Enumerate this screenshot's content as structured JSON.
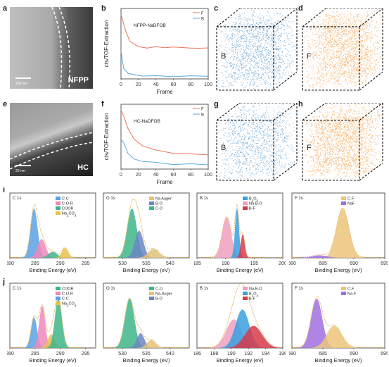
{
  "panels": {
    "a": {
      "label": "a",
      "caption": "NFPP",
      "scale": "200 nm"
    },
    "b": {
      "label": "b",
      "title": "NFPP-NaDFOB",
      "ylabel": "cts/TOF-Extraction",
      "xlabel": "Frame",
      "legend": [
        "F",
        "B"
      ],
      "xticks": [
        "0",
        "20",
        "40",
        "60",
        "80",
        "100"
      ]
    },
    "c": {
      "label": "c",
      "element": "B"
    },
    "d": {
      "label": "d",
      "element": "F"
    },
    "e": {
      "label": "e",
      "caption": "HC",
      "scale": "20 nm"
    },
    "f": {
      "label": "f",
      "title": "HC-NaDFOB",
      "ylabel": "cts/TOF-Extraction",
      "xlabel": "Frame",
      "legend": [
        "F",
        "B"
      ],
      "xticks": [
        "0",
        "20",
        "40",
        "60",
        "80",
        "100"
      ]
    },
    "g": {
      "label": "g",
      "element": "B"
    },
    "h": {
      "label": "h",
      "element": "F"
    },
    "i": {
      "label": "i"
    },
    "j": {
      "label": "j"
    }
  },
  "xps_xlabel": "Binding Energy (eV)",
  "colors": {
    "F": "#e8735a",
    "B": "#5aa9e0",
    "cubeB": "#2f7fc1",
    "cubeF": "#f08a1c"
  },
  "chart_data": [
    {
      "type": "line",
      "title": "NFPP-NaDFOB",
      "xlabel": "Frame",
      "ylabel": "cts/TOF-Extraction",
      "xlim": [
        0,
        100
      ],
      "series": [
        {
          "name": "F",
          "x": [
            0,
            5,
            10,
            20,
            30,
            40,
            50,
            60,
            70,
            80,
            90,
            100
          ],
          "values": [
            0.95,
            0.72,
            0.55,
            0.48,
            0.46,
            0.47,
            0.46,
            0.48,
            0.46,
            0.45,
            0.46,
            0.46
          ]
        },
        {
          "name": "B",
          "x": [
            0,
            3,
            8,
            15,
            25,
            40,
            60,
            80,
            100
          ],
          "values": [
            0.42,
            0.15,
            0.08,
            0.06,
            0.05,
            0.04,
            0.04,
            0.04,
            0.04
          ]
        }
      ]
    },
    {
      "type": "line",
      "title": "HC-NaDFOB",
      "xlabel": "Frame",
      "ylabel": "cts/TOF-Extraction",
      "xlim": [
        0,
        100
      ],
      "series": [
        {
          "name": "F",
          "x": [
            0,
            3,
            8,
            15,
            25,
            40,
            60,
            80,
            100
          ],
          "values": [
            0.95,
            0.85,
            0.65,
            0.48,
            0.38,
            0.3,
            0.26,
            0.24,
            0.23
          ]
        },
        {
          "name": "B",
          "x": [
            0,
            3,
            8,
            15,
            25,
            40,
            60,
            80,
            100
          ],
          "values": [
            0.48,
            0.42,
            0.25,
            0.16,
            0.13,
            0.1,
            0.08,
            0.08,
            0.07
          ]
        }
      ]
    },
    {
      "type": "area",
      "title": "C 1s",
      "xlim": [
        280,
        297
      ],
      "xticks": [
        280,
        285,
        290,
        295
      ],
      "legend": [
        "C-C",
        "C-O-R",
        "COOR",
        "Na2CO3"
      ],
      "peaks": [
        {
          "name": "C-C",
          "center": 284.8,
          "height": 1.0,
          "width": 0.7
        },
        {
          "name": "C-O-R",
          "center": 286.3,
          "height": 0.38,
          "width": 0.8
        },
        {
          "name": "COOR",
          "center": 288.5,
          "height": 0.12,
          "width": 0.9
        },
        {
          "name": "Na2CO3",
          "center": 290.9,
          "height": 0.2,
          "width": 0.6
        }
      ]
    },
    {
      "type": "area",
      "title": "O 1s",
      "xlim": [
        526,
        544
      ],
      "xticks": [
        530,
        535,
        540
      ],
      "legend": [
        "Na Auger",
        "B-O",
        "C-O"
      ],
      "peaks": [
        {
          "name": "C-O",
          "center": 532.0,
          "height": 1.0,
          "width": 1.0
        },
        {
          "name": "B-O",
          "center": 533.5,
          "height": 0.55,
          "width": 0.9
        },
        {
          "name": "Na Auger",
          "center": 536.5,
          "height": 0.18,
          "width": 1.1
        }
      ]
    },
    {
      "type": "area",
      "title": "B 1s",
      "xlim": [
        185,
        200
      ],
      "xticks": [
        185,
        190,
        195,
        200
      ],
      "legend": [
        "B2O3",
        "Na-B-O",
        "B-F"
      ],
      "peaks": [
        {
          "name": "Na-B-O",
          "center": 190.2,
          "height": 0.82,
          "width": 0.8
        },
        {
          "name": "B2O3",
          "center": 192.0,
          "height": 1.0,
          "width": 0.35
        },
        {
          "name": "B-F",
          "center": 193.0,
          "height": 0.48,
          "width": 0.35
        }
      ]
    },
    {
      "type": "area",
      "title": "F 1s",
      "xlim": [
        680,
        695
      ],
      "xticks": [
        680,
        685,
        690,
        695
      ],
      "legend": [
        "C-F",
        "NaF"
      ],
      "peaks": [
        {
          "name": "C-F",
          "center": 688.2,
          "height": 1.0,
          "width": 1.0
        },
        {
          "name": "NaF",
          "center": 684.5,
          "height": 0.05,
          "width": 1.2
        }
      ]
    },
    {
      "type": "area",
      "title": "C 1s",
      "xlim": [
        280,
        297
      ],
      "xticks": [
        280,
        285,
        290,
        295
      ],
      "legend": [
        "COOR",
        "C-O-R",
        "C-C",
        "Na2CO3"
      ],
      "peaks": [
        {
          "name": "C-C",
          "center": 284.8,
          "height": 0.62,
          "width": 0.6
        },
        {
          "name": "C-O-R",
          "center": 286.4,
          "height": 0.85,
          "width": 0.6
        },
        {
          "name": "Na2CO3",
          "center": 288.2,
          "height": 0.28,
          "width": 0.7
        },
        {
          "name": "COOR",
          "center": 289.6,
          "height": 1.0,
          "width": 0.7
        }
      ]
    },
    {
      "type": "area",
      "title": "O 1s",
      "xlim": [
        526,
        544
      ],
      "xticks": [
        530,
        535,
        540
      ],
      "legend": [
        "C-O",
        "Na-Auger",
        "B-O"
      ],
      "peaks": [
        {
          "name": "C-O",
          "center": 531.5,
          "height": 1.0,
          "width": 1.0
        },
        {
          "name": "B-O",
          "center": 533.8,
          "height": 0.3,
          "width": 0.8
        },
        {
          "name": "Na-Auger",
          "center": 536.0,
          "height": 0.16,
          "width": 0.9
        }
      ]
    },
    {
      "type": "area",
      "title": "B 1s",
      "xlim": [
        186,
        196
      ],
      "xticks": [
        186,
        188,
        190,
        192,
        194,
        196
      ],
      "legend": [
        "Na-B-O",
        "B2O3",
        "B-F"
      ],
      "peaks": [
        {
          "name": "Na-B-O",
          "center": 190.3,
          "height": 0.58,
          "width": 0.9
        },
        {
          "name": "B2O3",
          "center": 191.3,
          "height": 0.78,
          "width": 0.8
        },
        {
          "name": "B-F",
          "center": 192.6,
          "height": 0.45,
          "width": 1.0
        }
      ]
    },
    {
      "type": "area",
      "title": "F 1s",
      "xlim": [
        680,
        695
      ],
      "xticks": [
        680,
        685,
        690,
        695
      ],
      "legend": [
        "C-F",
        "Na-F"
      ],
      "peaks": [
        {
          "name": "Na-F",
          "center": 684.0,
          "height": 1.0,
          "width": 0.9
        },
        {
          "name": "C-F",
          "center": 686.8,
          "height": 0.45,
          "width": 1.2
        }
      ]
    }
  ]
}
